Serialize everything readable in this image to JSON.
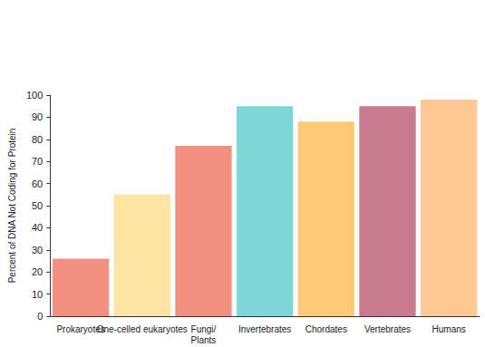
{
  "chart_data": {
    "type": "bar",
    "ylabel": "Percent of DNA Not Coding for Protein",
    "categories": [
      "Prokaryotes",
      "One-celled eukaryotes",
      "Fungi/ Plants",
      "Invertebrates",
      "Chordates",
      "Vertebrates",
      "Humans"
    ],
    "values": [
      26,
      55,
      77,
      95,
      88,
      95,
      98
    ],
    "colors": [
      "#f4907f",
      "#fde4a2",
      "#f4907f",
      "#7fd6d6",
      "#ffc978",
      "#c97a8e",
      "#ffc895"
    ],
    "ylim": [
      0,
      100
    ],
    "yticks": [
      0,
      10,
      20,
      30,
      40,
      50,
      60,
      70,
      80,
      90,
      100
    ],
    "grid": false
  }
}
